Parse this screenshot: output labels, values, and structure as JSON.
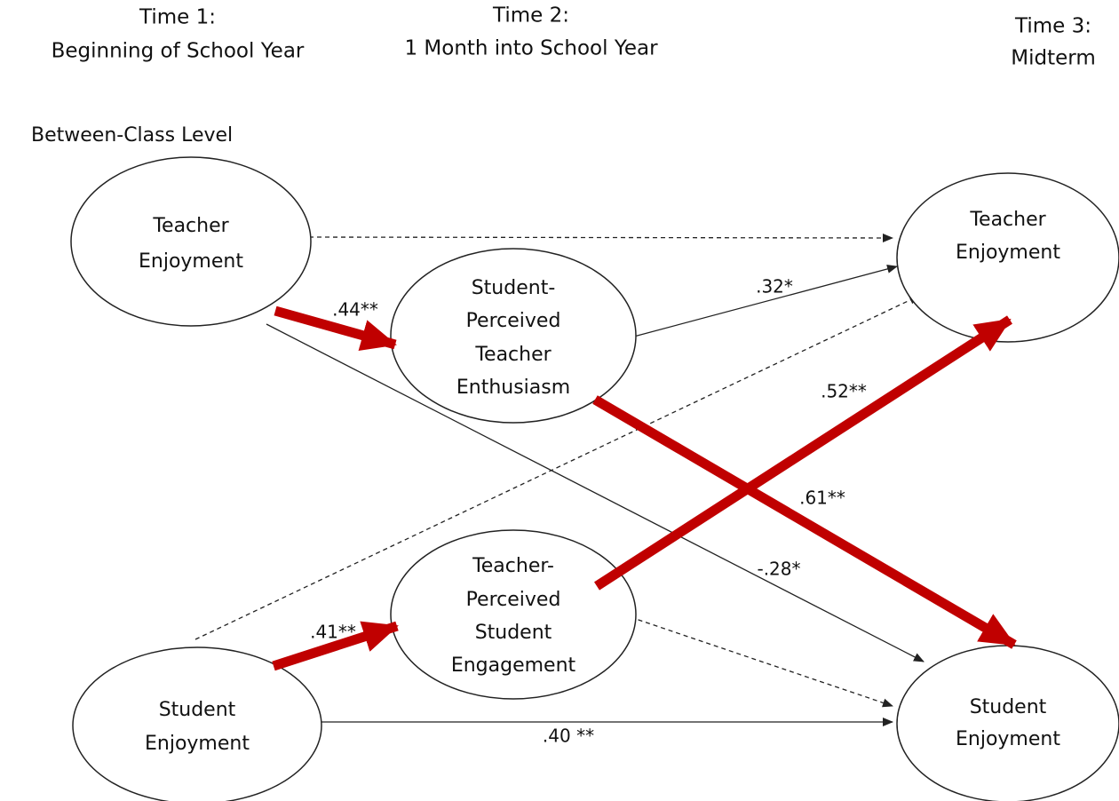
{
  "headers": [
    {
      "lines": [
        "Time 1:",
        "Beginning of School Year"
      ]
    },
    {
      "lines": [
        "Time 2:",
        "1 Month into School Year"
      ]
    },
    {
      "lines": [
        "Time 3:",
        "Midterm"
      ]
    }
  ],
  "level_label": "Between-Class Level",
  "nodes": [
    {
      "lines": [
        "Teacher",
        "Enjoyment"
      ]
    },
    {
      "lines": [
        "Student-",
        "Perceived",
        "Teacher",
        "Enthusiasm"
      ]
    },
    {
      "lines": [
        "Teacher",
        "Enjoyment"
      ]
    },
    {
      "lines": [
        "Teacher-",
        "Perceived",
        "Student",
        "Engagement"
      ]
    },
    {
      "lines": [
        "Student",
        "Enjoyment"
      ]
    },
    {
      "lines": [
        "Student",
        "Enjoyment"
      ]
    }
  ],
  "edges": [
    {
      "label": ".44**"
    },
    {
      "label": ".32*"
    },
    {
      "label": ".52**"
    },
    {
      "label": ".61**"
    },
    {
      "label": "-.28*"
    },
    {
      "label": ".41**"
    },
    {
      "label": ".40 **"
    }
  ]
}
